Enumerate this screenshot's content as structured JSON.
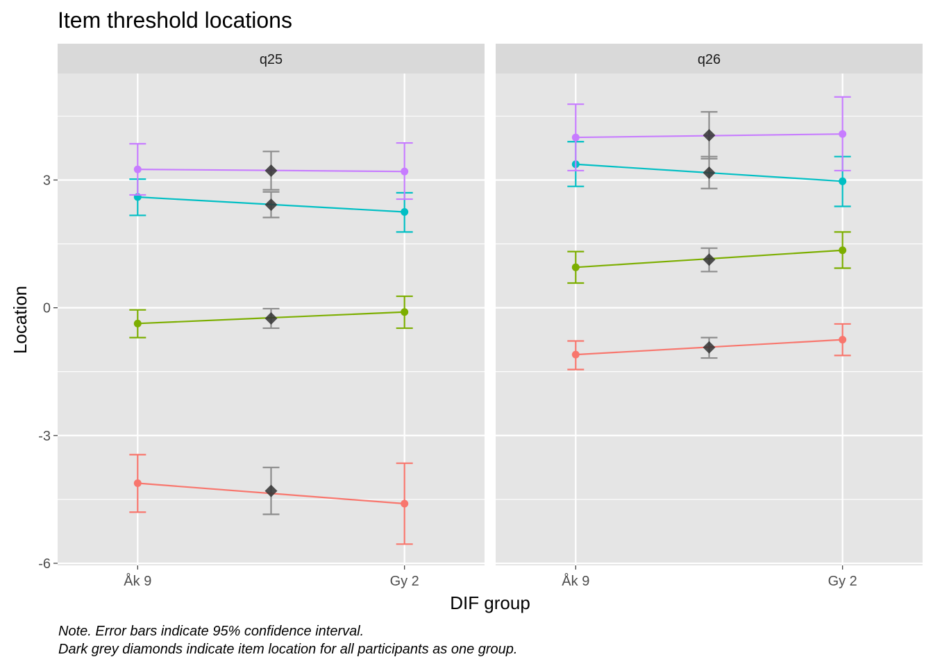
{
  "chart_data": {
    "type": "line",
    "title": "Item threshold locations",
    "xlabel": "DIF group",
    "ylabel": "Location",
    "caption": [
      "Note. Error bars indicate 95% confidence interval.",
      "Dark grey diamonds indicate item location for all participants as one group."
    ],
    "categories": [
      "Åk 9",
      "Gy 2"
    ],
    "ylim": [
      -6.05,
      5.5
    ],
    "yticks": [
      -6,
      -3,
      0,
      3
    ],
    "grid": true,
    "legend": "none",
    "colors": {
      "threshold_1": "#F8766D",
      "threshold_2": "#7CAE00",
      "threshold_3": "#00BFC4",
      "threshold_4": "#C77CFF",
      "overall": "#333333",
      "overall_errorbar": "#8c8c8c",
      "panel_bg": "#e5e5e5",
      "strip_bg": "#d9d9d9",
      "grid": "#ffffff"
    },
    "panels": [
      {
        "label": "q25",
        "thresholds": [
          {
            "color_key": "threshold_1",
            "values": [
              -4.12,
              -4.6
            ],
            "lower": [
              -4.8,
              -5.55
            ],
            "upper": [
              -3.45,
              -3.65
            ],
            "overall": {
              "value": -4.3,
              "lower": -4.85,
              "upper": -3.75
            }
          },
          {
            "color_key": "threshold_2",
            "values": [
              -0.37,
              -0.1
            ],
            "lower": [
              -0.7,
              -0.48
            ],
            "upper": [
              -0.05,
              0.27
            ],
            "overall": {
              "value": -0.25,
              "lower": -0.48,
              "upper": -0.02
            }
          },
          {
            "color_key": "threshold_3",
            "values": [
              2.6,
              2.25
            ],
            "lower": [
              2.17,
              1.78
            ],
            "upper": [
              3.02,
              2.7
            ],
            "overall": {
              "value": 2.42,
              "lower": 2.12,
              "upper": 2.72
            }
          },
          {
            "color_key": "threshold_4",
            "values": [
              3.25,
              3.2
            ],
            "lower": [
              2.65,
              2.55
            ],
            "upper": [
              3.85,
              3.87
            ],
            "overall": {
              "value": 3.22,
              "lower": 2.77,
              "upper": 3.67
            }
          }
        ]
      },
      {
        "label": "q26",
        "thresholds": [
          {
            "color_key": "threshold_1",
            "values": [
              -1.1,
              -0.75
            ],
            "lower": [
              -1.45,
              -1.12
            ],
            "upper": [
              -0.78,
              -0.38
            ],
            "overall": {
              "value": -0.93,
              "lower": -1.18,
              "upper": -0.7
            }
          },
          {
            "color_key": "threshold_2",
            "values": [
              0.95,
              1.35
            ],
            "lower": [
              0.58,
              0.93
            ],
            "upper": [
              1.32,
              1.78
            ],
            "overall": {
              "value": 1.13,
              "lower": 0.85,
              "upper": 1.4
            }
          },
          {
            "color_key": "threshold_3",
            "values": [
              3.37,
              2.97
            ],
            "lower": [
              2.85,
              2.38
            ],
            "upper": [
              3.9,
              3.55
            ],
            "overall": {
              "value": 3.17,
              "lower": 2.8,
              "upper": 3.55
            }
          },
          {
            "color_key": "threshold_4",
            "values": [
              4.0,
              4.08
            ],
            "lower": [
              3.22,
              3.22
            ],
            "upper": [
              4.78,
              4.95
            ],
            "overall": {
              "value": 4.05,
              "lower": 3.5,
              "upper": 4.6
            }
          }
        ]
      }
    ]
  }
}
